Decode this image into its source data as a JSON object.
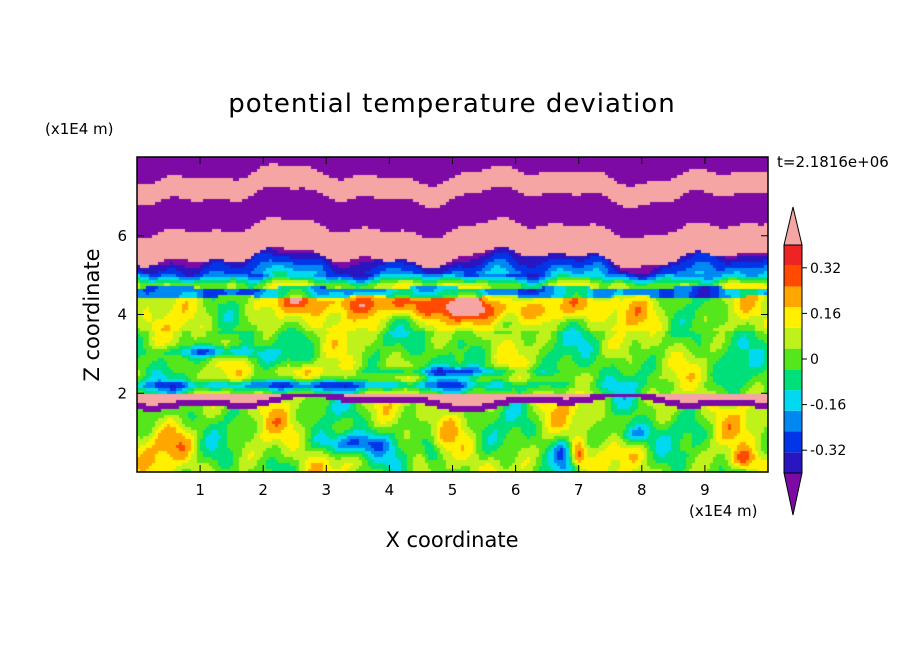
{
  "chart_data": {
    "type": "heatmap",
    "title": "potential temperature deviation",
    "time_label": "t=2.1816e+06",
    "xlabel": "X coordinate",
    "ylabel": "Z coordinate",
    "x_unit": "(x1E4 m)",
    "y_unit": "(x1E4 m)",
    "xlim": [
      0,
      10
    ],
    "ylim": [
      0,
      8
    ],
    "x_ticks": [
      1,
      2,
      3,
      4,
      5,
      6,
      7,
      8,
      9
    ],
    "y_ticks": [
      2,
      4,
      6
    ],
    "colorbar": {
      "levels": [
        -0.4,
        -0.32,
        -0.24,
        -0.16,
        -0.08,
        0,
        0.08,
        0.16,
        0.24,
        0.32,
        0.4
      ],
      "colors": [
        "#7d0aa5",
        "#2a16c0",
        "#0035e8",
        "#0088f2",
        "#00d9ef",
        "#00e07a",
        "#55e61c",
        "#bff21b",
        "#fff000",
        "#ffa700",
        "#ff4a00",
        "#ee2424",
        "#f6a5a5"
      ],
      "labels": [
        "0.32",
        "0.16",
        "0",
        "-0.16",
        "-0.32"
      ],
      "label_values": [
        0.32,
        0.16,
        0,
        -0.16,
        -0.32
      ],
      "extend": "both"
    },
    "grid": false,
    "legend": "right"
  }
}
